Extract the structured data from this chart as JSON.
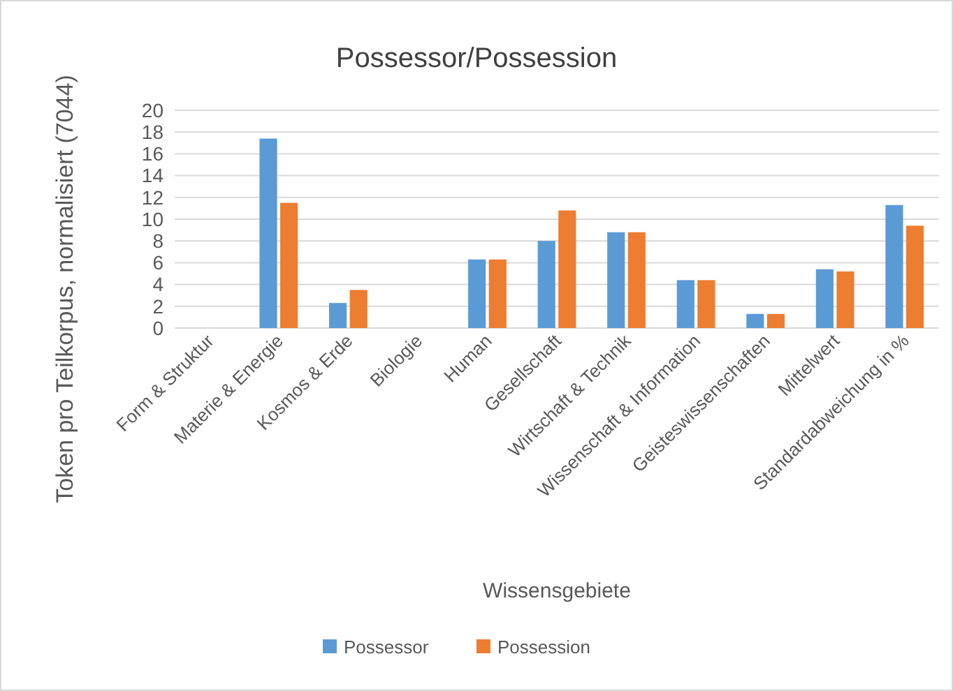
{
  "chart_data": {
    "type": "bar",
    "title": "Possessor/Possession",
    "xlabel": "Wissensgebiete",
    "ylabel": "Token pro Teilkorpus, normalisiert (7044)",
    "categories": [
      "Form & Struktur",
      "Materie & Energie",
      "Kosmos & Erde",
      "Biologie",
      "Human",
      "Gesellschaft",
      "Wirtschaft & Technik",
      "Wissenschaft & Information",
      "Geisteswissenschaften",
      "Mittelwert",
      "Standardabweichung in %"
    ],
    "series": [
      {
        "name": "Possessor",
        "color": "#5b9bd5",
        "values": [
          0,
          17.4,
          2.3,
          0,
          6.3,
          8.0,
          8.8,
          4.4,
          1.3,
          5.4,
          11.3
        ]
      },
      {
        "name": "Possession",
        "color": "#ed7d31",
        "values": [
          0,
          11.5,
          3.5,
          0,
          6.3,
          10.8,
          8.8,
          4.4,
          1.3,
          5.2,
          9.4
        ]
      }
    ],
    "ylim": [
      0,
      20
    ],
    "yticks": [
      0,
      2,
      4,
      6,
      8,
      10,
      12,
      14,
      16,
      18,
      20
    ],
    "grid": "y",
    "legend": "bottom"
  }
}
